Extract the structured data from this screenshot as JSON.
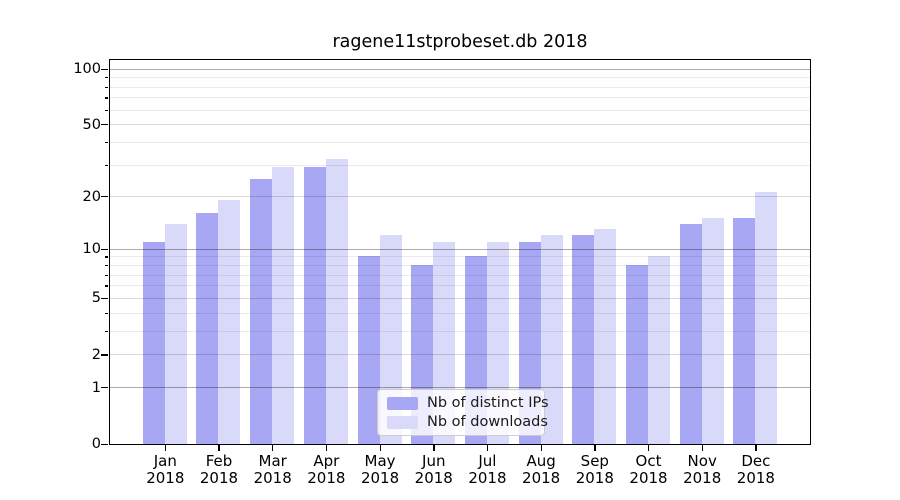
{
  "title": "ragene11stprobeset.db 2018",
  "chart_data": {
    "type": "bar",
    "title": "ragene11stprobeset.db 2018",
    "categories": [
      "Jan",
      "Feb",
      "Mar",
      "Apr",
      "May",
      "Jun",
      "Jul",
      "Aug",
      "Sep",
      "Oct",
      "Nov",
      "Dec"
    ],
    "year": "2018",
    "series": [
      {
        "name": "Nb of distinct IPs",
        "color": "#a7a7f3",
        "values": [
          11,
          16,
          25,
          29,
          9,
          8,
          9,
          11,
          12,
          8,
          14,
          15
        ]
      },
      {
        "name": "Nb of downloads",
        "color": "#d9d9fa",
        "values": [
          14,
          19,
          29,
          32,
          12,
          11,
          11,
          12,
          13,
          9,
          15,
          21
        ]
      }
    ],
    "xlabel": "",
    "ylabel": "",
    "y_scale": "log1p",
    "ylim": [
      0,
      112
    ],
    "y_tick_values": [
      100,
      50,
      20,
      10,
      5,
      2,
      1,
      0
    ],
    "y_tick_labels": [
      "100",
      "50",
      "20",
      "10",
      "5",
      "2",
      "1",
      "0"
    ],
    "y_decade_gridlines": [
      1,
      10,
      100
    ],
    "y_submajor_gridlines": [
      2,
      5,
      20,
      50
    ],
    "y_minor_gridlines": [
      3,
      4,
      6,
      7,
      8,
      9,
      30,
      40,
      60,
      70,
      80,
      90
    ],
    "grid": true,
    "legend_position": "bottom-center"
  }
}
